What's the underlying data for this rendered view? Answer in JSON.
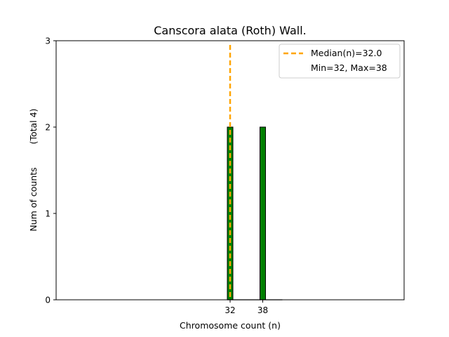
{
  "chart_data": {
    "type": "bar",
    "title": "Canscora alata (Roth) Wall.",
    "xlabel": "Chromosome count (n)",
    "ylabel": "Num of counts",
    "ylabel_extra": "(Total 4)",
    "x": [
      32,
      38
    ],
    "values": [
      2,
      2
    ],
    "xlim": [
      0,
      64
    ],
    "ylim": [
      0,
      3
    ],
    "x_ticks": [
      32,
      38
    ],
    "y_ticks": [
      0,
      1,
      2,
      3
    ],
    "bar_color": "#008000",
    "bar_edge_color": "#000000",
    "median": 32.0,
    "median_color": "#FFA500",
    "legend": {
      "location": "top-right",
      "entries": [
        "Median(n)=32.0",
        "Min=32, Max=38"
      ]
    },
    "grid": false
  }
}
